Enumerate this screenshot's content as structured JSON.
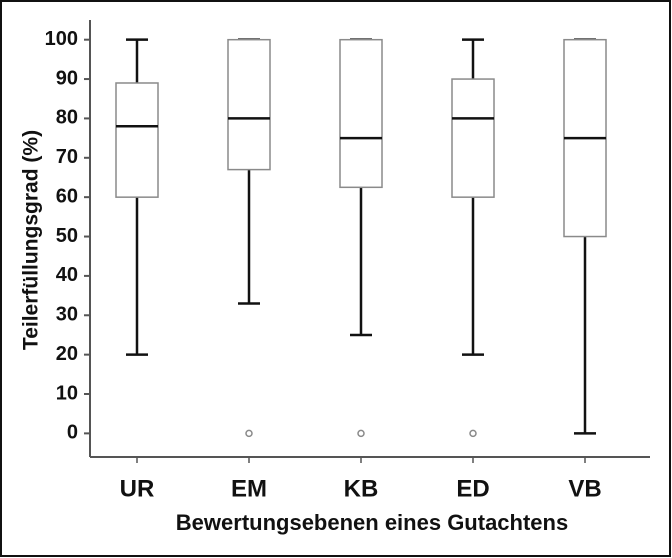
{
  "chart_data": {
    "type": "box",
    "y_label": "Teilerfüllungsgrad (%)",
    "x_label": "Bewertungsebenen eines Gutachtens",
    "categories": [
      "UR",
      "EM",
      "KB",
      "ED",
      "VB"
    ],
    "boxes": [
      {
        "min": 20,
        "q1": 60,
        "median": 78,
        "q3": 89,
        "max": 100,
        "outliers": []
      },
      {
        "min": 33,
        "q1": 67,
        "median": 80,
        "q3": 100,
        "max": 100,
        "outliers": [
          0
        ]
      },
      {
        "min": 25,
        "q1": 62.5,
        "median": 75,
        "q3": 100,
        "max": 100,
        "outliers": [
          0
        ]
      },
      {
        "min": 20,
        "q1": 60,
        "median": 80,
        "q3": 90,
        "max": 100,
        "outliers": [
          0
        ]
      },
      {
        "min": 0,
        "q1": 50,
        "median": 75,
        "q3": 100,
        "max": 100,
        "outliers": []
      }
    ],
    "box_color": "#8a8a8a",
    "whisker_color": "#111111",
    "ylim": [
      -6,
      105
    ],
    "yticks": [
      0,
      10,
      20,
      30,
      40,
      50,
      60,
      70,
      80,
      90,
      100
    ],
    "grid": false
  }
}
